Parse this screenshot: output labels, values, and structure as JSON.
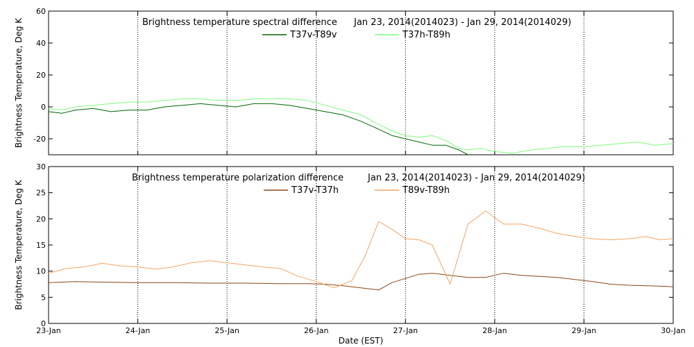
{
  "chart_data": [
    {
      "type": "line",
      "title": "Brightness temperature spectral difference",
      "date_range": "Jan 23, 2014(2014023) - Jan 29, 2014(2014029)",
      "ylabel": "Brightness Temperature, Deg K",
      "xlabel": "",
      "xlim": [
        0,
        7
      ],
      "ylim": [
        -30,
        60
      ],
      "yticks": [
        -20,
        0,
        20,
        40,
        60
      ],
      "grid": "vertical dotted at each day",
      "legend_position": "top-center",
      "series": [
        {
          "name": "T37v-T89v",
          "color": "#006400",
          "x": [
            0,
            0.15,
            0.3,
            0.5,
            0.7,
            0.9,
            1.1,
            1.3,
            1.5,
            1.7,
            1.9,
            2.1,
            2.3,
            2.5,
            2.7,
            2.9,
            3.1,
            3.3,
            3.5,
            3.7,
            3.85,
            4.0,
            4.15,
            4.3,
            4.45,
            4.6,
            4.7
          ],
          "y": [
            -3,
            -4,
            -2,
            -1,
            -3,
            -2,
            -2,
            0,
            1,
            2,
            1,
            0,
            2,
            2,
            1,
            -1,
            -3,
            -5,
            -9,
            -14,
            -18,
            -20,
            -22,
            -24,
            -24,
            -27,
            -30
          ]
        },
        {
          "name": "T37h-T89h",
          "color": "#7CFC7C",
          "x": [
            0,
            0.15,
            0.3,
            0.5,
            0.7,
            0.9,
            1.1,
            1.3,
            1.5,
            1.7,
            1.9,
            2.1,
            2.3,
            2.5,
            2.7,
            2.9,
            3.1,
            3.3,
            3.5,
            3.7,
            3.85,
            4.0,
            4.15,
            4.3,
            4.45,
            4.6,
            4.7,
            4.85,
            5.0,
            5.2,
            5.4,
            5.6,
            5.75,
            6.0,
            6.2,
            6.4,
            6.6,
            6.8,
            7.0
          ],
          "y": [
            -1,
            -2,
            0,
            1,
            2,
            3,
            3,
            4,
            5,
            5,
            4,
            4,
            5,
            5,
            5,
            4,
            1,
            -2,
            -5,
            -11,
            -15,
            -18,
            -19,
            -18,
            -21,
            -26,
            -27,
            -26,
            -28,
            -29,
            -27,
            -26,
            -25,
            -25,
            -24,
            -23,
            -22,
            -24,
            -23
          ]
        }
      ]
    },
    {
      "type": "line",
      "title": "Brightness temperature polarization difference",
      "date_range": "Jan 23, 2014(2014023) - Jan 29, 2014(2014029)",
      "ylabel": "Brightness Temperature, Deg K",
      "xlabel": "Date (EST)",
      "xlim": [
        0,
        7
      ],
      "ylim": [
        0,
        30
      ],
      "yticks": [
        0,
        5,
        10,
        15,
        20,
        25,
        30
      ],
      "xticks": [
        "23-Jan",
        "24-Jan",
        "25-Jan",
        "26-Jan",
        "27-Jan",
        "28-Jan",
        "29-Jan",
        "30-Jan"
      ],
      "grid": "vertical dotted at each day",
      "legend_position": "top-center",
      "series": [
        {
          "name": "T37v-T37h",
          "color": "#8B4513",
          "x": [
            0,
            0.3,
            0.6,
            1.0,
            1.4,
            1.8,
            2.2,
            2.6,
            2.9,
            3.1,
            3.3,
            3.5,
            3.7,
            3.85,
            4.0,
            4.15,
            4.3,
            4.5,
            4.7,
            4.9,
            5.1,
            5.3,
            5.5,
            5.7,
            5.9,
            6.1,
            6.3,
            6.5,
            6.7,
            6.9,
            7.0
          ],
          "y": [
            7.8,
            8.0,
            7.9,
            7.8,
            7.8,
            7.7,
            7.7,
            7.6,
            7.6,
            7.5,
            7.2,
            6.8,
            6.4,
            7.8,
            8.6,
            9.4,
            9.6,
            9.2,
            8.8,
            8.8,
            9.6,
            9.2,
            9.0,
            8.8,
            8.4,
            8.0,
            7.5,
            7.3,
            7.2,
            7.1,
            7.0
          ]
        },
        {
          "name": "T89v-T89h",
          "color": "#F4A460",
          "x": [
            0,
            0.2,
            0.4,
            0.6,
            0.8,
            1.0,
            1.2,
            1.4,
            1.6,
            1.8,
            2.0,
            2.2,
            2.4,
            2.6,
            2.8,
            3.0,
            3.2,
            3.4,
            3.55,
            3.7,
            3.85,
            4.0,
            4.15,
            4.3,
            4.5,
            4.7,
            4.9,
            5.1,
            5.3,
            5.5,
            5.7,
            5.9,
            6.1,
            6.3,
            6.5,
            6.7,
            6.85,
            7.0
          ],
          "y": [
            9.6,
            10.5,
            10.8,
            11.5,
            11.0,
            10.8,
            10.4,
            10.8,
            11.6,
            12.0,
            11.6,
            11.2,
            10.8,
            10.5,
            9.0,
            8.0,
            6.8,
            8.2,
            13.0,
            19.5,
            18.0,
            16.2,
            16.0,
            15.0,
            7.5,
            19.0,
            21.5,
            19.0,
            19.0,
            18.2,
            17.2,
            16.6,
            16.2,
            16.0,
            16.2,
            16.6,
            16.0,
            16.2
          ]
        }
      ]
    }
  ]
}
